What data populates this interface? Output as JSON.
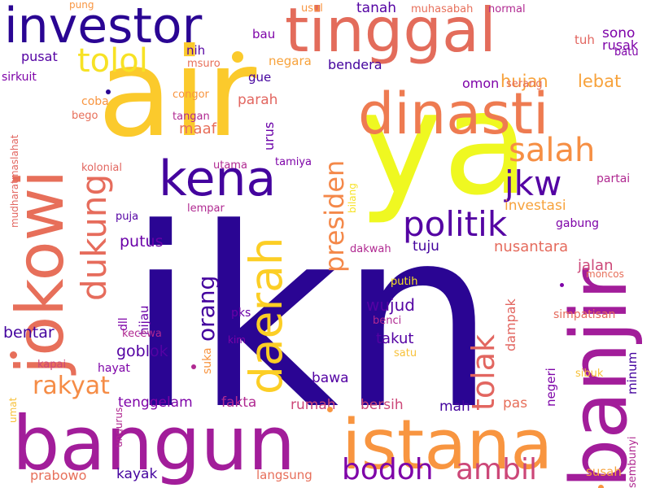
{
  "words": [
    {
      "text": "ikn",
      "color": "#2a0593",
      "rotated": false
    },
    {
      "text": "air",
      "color": "#fbca2c",
      "rotated": false
    },
    {
      "text": "ya",
      "color": "#eff821",
      "rotated": false
    },
    {
      "text": "banjir",
      "color": "#a21d9a",
      "rotated": true
    },
    {
      "text": "bangun",
      "color": "#a21d9a",
      "rotated": false
    },
    {
      "text": "istana",
      "color": "#f89540",
      "rotated": false
    },
    {
      "text": "jokowi",
      "color": "#e76f5a",
      "rotated": true
    },
    {
      "text": "tinggal",
      "color": "#e36c5b",
      "rotated": false
    },
    {
      "text": "investor",
      "color": "#2a0593",
      "rotated": false
    },
    {
      "text": "dinasti",
      "color": "#ee7b51",
      "rotated": false
    },
    {
      "text": "daerah",
      "color": "#fcce25",
      "rotated": true
    },
    {
      "text": "kena",
      "color": "#44039e",
      "rotated": false
    },
    {
      "text": "dukung",
      "color": "#e66c5c",
      "rotated": true
    },
    {
      "text": "presiden",
      "color": "#f48849",
      "rotated": true
    },
    {
      "text": "politik",
      "color": "#5402a3",
      "rotated": false
    },
    {
      "text": "tolak",
      "color": "#e26660",
      "rotated": true
    },
    {
      "text": "salah",
      "color": "#f68f44",
      "rotated": false
    },
    {
      "text": "jkw",
      "color": "#5402a3",
      "rotated": false
    },
    {
      "text": "tolol",
      "color": "#f7e225",
      "rotated": false
    },
    {
      "text": "orang",
      "color": "#44039e",
      "rotated": true
    },
    {
      "text": "rakyat",
      "color": "#f58c46",
      "rotated": false
    },
    {
      "text": "bodoh",
      "color": "#7e03a8",
      "rotated": false
    },
    {
      "text": "ambil",
      "color": "#cc4778",
      "rotated": false
    },
    {
      "text": "hujan",
      "color": "#f7a23b",
      "rotated": false
    },
    {
      "text": "lebat",
      "color": "#f7a23b",
      "rotated": false
    },
    {
      "text": "investasi",
      "color": "#f7a23b",
      "rotated": false
    },
    {
      "text": "nusantara",
      "color": "#e56b5d",
      "rotated": false
    },
    {
      "text": "wujud",
      "color": "#5402a3",
      "rotated": false
    },
    {
      "text": "takut",
      "color": "#5402a3",
      "rotated": false
    },
    {
      "text": "jalan",
      "color": "#cc4778",
      "rotated": false
    },
    {
      "text": "putus",
      "color": "#6a00a8",
      "rotated": false
    },
    {
      "text": "goblok",
      "color": "#5402a3",
      "rotated": false
    },
    {
      "text": "bentar",
      "color": "#44039e",
      "rotated": false
    },
    {
      "text": "tenggelam",
      "color": "#7e03a8",
      "rotated": false
    },
    {
      "text": "fakta",
      "color": "#b02991",
      "rotated": false
    },
    {
      "text": "rumah",
      "color": "#cc4778",
      "rotated": false
    },
    {
      "text": "bersih",
      "color": "#cc4778",
      "rotated": false
    },
    {
      "text": "mah",
      "color": "#44039e",
      "rotated": false
    },
    {
      "text": "pas",
      "color": "#e76f5a",
      "rotated": false
    },
    {
      "text": "bawa",
      "color": "#5402a3",
      "rotated": false
    },
    {
      "text": "kayak",
      "color": "#44039e",
      "rotated": false
    },
    {
      "text": "langsung",
      "color": "#e76f5a",
      "rotated": false
    },
    {
      "text": "prabowo",
      "color": "#e76f5a",
      "rotated": false
    },
    {
      "text": "susah",
      "color": "#f7a23b",
      "rotated": false
    },
    {
      "text": "bendera",
      "color": "#44039e",
      "rotated": false
    },
    {
      "text": "pusat",
      "color": "#5402a3",
      "rotated": false
    },
    {
      "text": "coba",
      "color": "#f89540",
      "rotated": false
    },
    {
      "text": "maaf",
      "color": "#e76f5a",
      "rotated": false
    },
    {
      "text": "parah",
      "color": "#e26660",
      "rotated": false
    },
    {
      "text": "gue",
      "color": "#44039e",
      "rotated": false
    },
    {
      "text": "bau",
      "color": "#7e03a8",
      "rotated": false
    },
    {
      "text": "nih",
      "color": "#5402a3",
      "rotated": false
    },
    {
      "text": "negara",
      "color": "#f7a23b",
      "rotated": false
    },
    {
      "text": "tanah",
      "color": "#5402a3",
      "rotated": false
    },
    {
      "text": "omon",
      "color": "#7e03a8",
      "rotated": false
    },
    {
      "text": "sono",
      "color": "#7e03a8",
      "rotated": false
    },
    {
      "text": "rusak",
      "color": "#7e03a8",
      "rotated": false
    },
    {
      "text": "tuh",
      "color": "#e26660",
      "rotated": false
    },
    {
      "text": "tuju",
      "color": "#44039e",
      "rotated": false
    },
    {
      "text": "dampak",
      "color": "#e26660",
      "rotated": true
    },
    {
      "text": "negeri",
      "color": "#7e03a8",
      "rotated": true
    },
    {
      "text": "minum",
      "color": "#44039e",
      "rotated": true
    },
    {
      "text": "urus",
      "color": "#6a00a8",
      "rotated": true
    },
    {
      "text": "hijau",
      "color": "#6a00a8",
      "rotated": true
    },
    {
      "text": "dll",
      "color": "#7e03a8",
      "rotated": true
    },
    {
      "text": "suka",
      "color": "#f89540",
      "rotated": true
    },
    {
      "text": "pks",
      "color": "#6a00a8",
      "rotated": false
    },
    {
      "text": "kim",
      "color": "#7e03a8",
      "rotated": false
    },
    {
      "text": "kecewa",
      "color": "#b02991",
      "rotated": false
    },
    {
      "text": "hayat",
      "color": "#7e03a8",
      "rotated": false
    },
    {
      "text": "kapai",
      "color": "#cc4778",
      "rotated": false
    },
    {
      "text": "benci",
      "color": "#b02991",
      "rotated": false
    },
    {
      "text": "satu",
      "color": "#f7c13a",
      "rotated": false
    },
    {
      "text": "putih",
      "color": "#f7e225",
      "rotated": false
    },
    {
      "text": "dakwah",
      "color": "#b02991",
      "rotated": false
    },
    {
      "text": "gabung",
      "color": "#7e03a8",
      "rotated": false
    },
    {
      "text": "partai",
      "color": "#b02991",
      "rotated": false
    },
    {
      "text": "simpatisan",
      "color": "#e56b5d",
      "rotated": false
    },
    {
      "text": "moncos",
      "color": "#e76f5a",
      "rotated": false
    },
    {
      "text": "sibuk",
      "color": "#f7c13a",
      "rotated": false
    },
    {
      "text": "sembunyi",
      "color": "#b02991",
      "rotated": true
    },
    {
      "text": "umat",
      "color": "#f7c13a",
      "rotated": true
    },
    {
      "text": "ungurus",
      "color": "#b02991",
      "rotated": true
    },
    {
      "text": "mudharatmaslahat",
      "color": "#e26660",
      "rotated": true
    },
    {
      "text": "sirkuit",
      "color": "#7e03a8",
      "rotated": false
    },
    {
      "text": "bego",
      "color": "#e76f5a",
      "rotated": false
    },
    {
      "text": "kolonial",
      "color": "#e26660",
      "rotated": false
    },
    {
      "text": "puja",
      "color": "#5402a3",
      "rotated": false
    },
    {
      "text": "lempar",
      "color": "#b02991",
      "rotated": false
    },
    {
      "text": "utama",
      "color": "#b02991",
      "rotated": false
    },
    {
      "text": "tamiya",
      "color": "#7e03a8",
      "rotated": false
    },
    {
      "text": "bilang",
      "color": "#f7e225",
      "rotated": true
    },
    {
      "text": "congor",
      "color": "#f89540",
      "rotated": false
    },
    {
      "text": "tangan",
      "color": "#b02991",
      "rotated": false
    },
    {
      "text": "msuro",
      "color": "#e76f5a",
      "rotated": false
    },
    {
      "text": "pung",
      "color": "#f89540",
      "rotated": false
    },
    {
      "text": "usul",
      "color": "#f89540",
      "rotated": false
    },
    {
      "text": "muhasabah",
      "color": "#e76f5a",
      "rotated": false
    },
    {
      "text": "normal",
      "color": "#b02991",
      "rotated": false
    },
    {
      "text": "serang",
      "color": "#e76f5a",
      "rotated": false
    },
    {
      "text": "batu",
      "color": "#7e03a8",
      "rotated": false
    }
  ],
  "dots": [
    {
      "color": "#fbca2c"
    },
    {
      "color": "#e76f5a"
    },
    {
      "color": "#f89540"
    },
    {
      "color": "#b02991"
    },
    {
      "color": "#f89540"
    },
    {
      "color": "#7e03a8"
    },
    {
      "color": "#2a0593"
    }
  ]
}
